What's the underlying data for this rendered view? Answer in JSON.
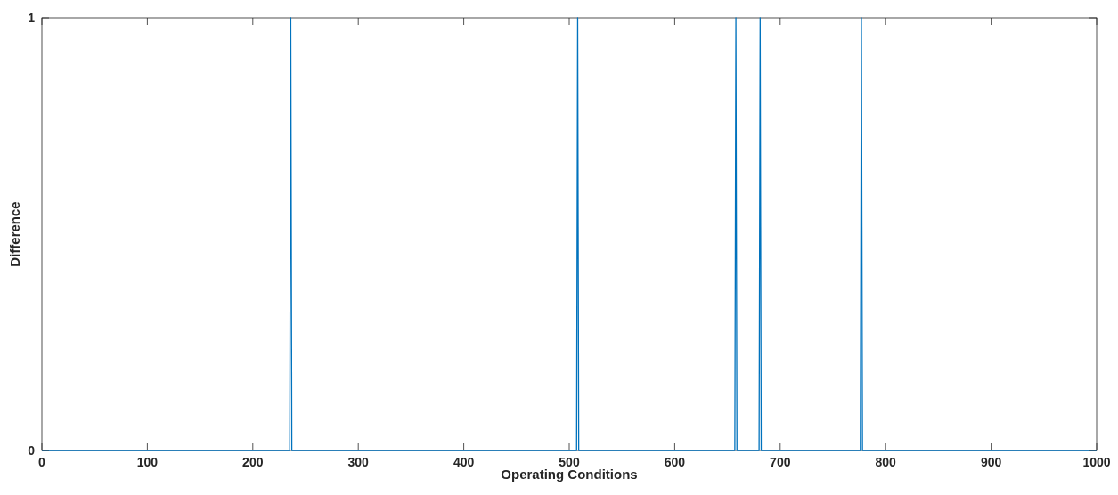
{
  "chart_data": {
    "type": "line",
    "xlabel": "Operating Conditions",
    "ylabel": "Difference",
    "x": [
      0,
      235,
      236,
      237,
      507,
      508,
      509,
      657,
      658,
      659,
      680,
      681,
      682,
      776,
      777,
      778,
      1000
    ],
    "series": [
      {
        "color": "#0072bd",
        "values": [
          0,
          0,
          1,
          0,
          0,
          1,
          0,
          0,
          1,
          0,
          0,
          1,
          0,
          0,
          1,
          0,
          0
        ]
      }
    ],
    "xlim": [
      0,
      1000
    ],
    "xticks": [
      0,
      100,
      200,
      300,
      400,
      500,
      600,
      700,
      800,
      900,
      1000
    ],
    "ylim": [
      0,
      1
    ],
    "yticks": [
      0,
      1
    ],
    "marker": "none",
    "line_style": "solid"
  }
}
